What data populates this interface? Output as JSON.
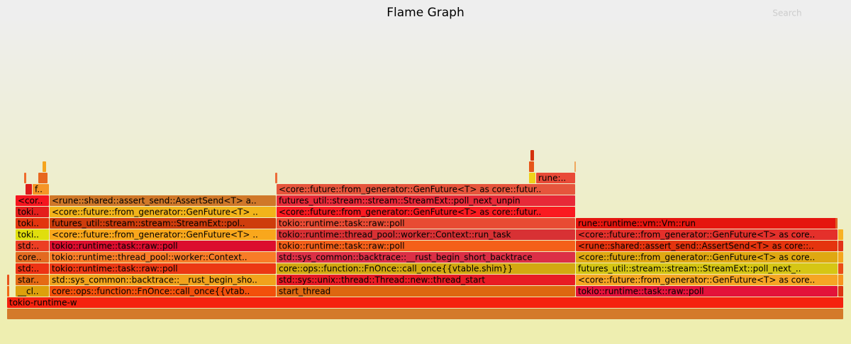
{
  "header": {
    "title": "Flame Graph",
    "search": "Search"
  },
  "frames": [
    {
      "label": "tokio-runtime-w"
    },
    {
      "label": "__cl.."
    },
    {
      "label": "core::ops::function::FnOnce::call_once{{vtab.."
    },
    {
      "label": "start_thread"
    },
    {
      "label": "tokio::runtime::task::raw::poll"
    },
    {
      "label": "star.."
    },
    {
      "label": "std::sys_common::backtrace::__rust_begin_sho.."
    },
    {
      "label": "std::sys::unix::thread::Thread::new::thread_start"
    },
    {
      "label": "<core::future::from_generator::GenFuture<T> as core.."
    },
    {
      "label": "std:.."
    },
    {
      "label": "tokio::runtime::task::raw::poll"
    },
    {
      "label": "core::ops::function::FnOnce::call_once{{vtable.shim}}"
    },
    {
      "label": "futures_util::stream::stream::StreamExt::poll_next_.."
    },
    {
      "label": "core.."
    },
    {
      "label": "tokio::runtime::thread_pool::worker::Context.."
    },
    {
      "label": "std::sys_common::backtrace::__rust_begin_short_backtrace"
    },
    {
      "label": "<core::future::from_generator::GenFuture<T> as core.."
    },
    {
      "label": "std:.."
    },
    {
      "label": "tokio::runtime::task::raw::poll"
    },
    {
      "label": "tokio::runtime::task::raw::poll"
    },
    {
      "label": "<rune::shared::assert_send::AssertSend<T> as core::.."
    },
    {
      "label": "toki.."
    },
    {
      "label": "<core::future::from_generator::GenFuture<T> .."
    },
    {
      "label": "tokio::runtime::thread_pool::worker::Context::run_task"
    },
    {
      "label": "<core::future::from_generator::GenFuture<T> as core.."
    },
    {
      "label": "toki.."
    },
    {
      "label": "futures_util::stream::stream::StreamExt::pol.."
    },
    {
      "label": "tokio::runtime::task::raw::poll"
    },
    {
      "label": "rune::runtime::vm::Vm::run"
    },
    {
      "label": "toki.."
    },
    {
      "label": "<core::future::from_generator::GenFuture<T> .."
    },
    {
      "label": "<core::future::from_generator::GenFuture<T> as core::futur.."
    },
    {
      "label": "<cor.."
    },
    {
      "label": "<rune::shared::assert_send::AssertSend<T> a.."
    },
    {
      "label": "futures_util::stream::stream::StreamExt::poll_next_unpin"
    },
    {
      "label": "f.."
    },
    {
      "label": "<core::future::from_generator::GenFuture<T> as core::futur.."
    },
    {
      "label": "rune:.."
    }
  ]
}
